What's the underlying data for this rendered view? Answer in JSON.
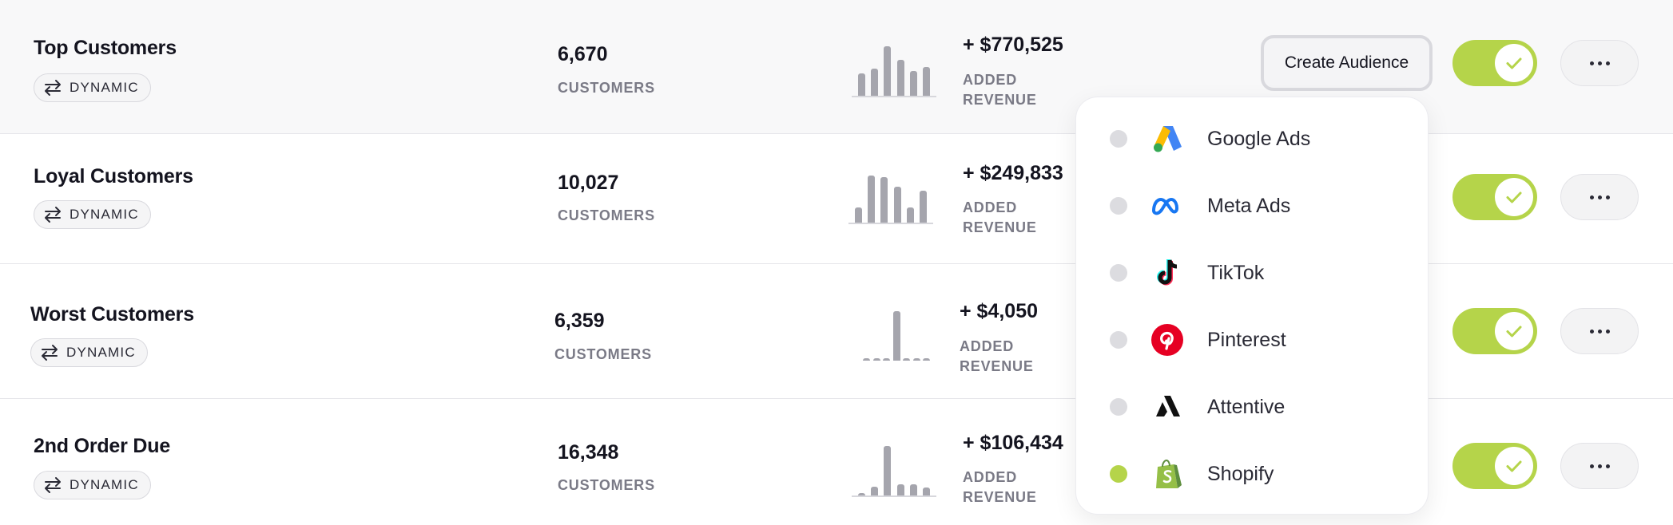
{
  "segments": [
    {
      "name": "Top Customers",
      "badge": "DYNAMIC",
      "count": "6,670",
      "count_label": "CUSTOMERS",
      "revenue": "+ $770,525",
      "revenue_label": "ADDED REVENUE",
      "spark": [
        0.45,
        0.55,
        1.0,
        0.72,
        0.5,
        0.58
      ],
      "enabled": true
    },
    {
      "name": "Loyal Customers",
      "badge": "DYNAMIC",
      "count": "10,027",
      "count_label": "CUSTOMERS",
      "revenue": "+ $249,833",
      "revenue_label": "ADDED REVENUE",
      "spark": [
        0.3,
        0.95,
        0.92,
        0.72,
        0.3,
        0.65
      ],
      "enabled": true
    },
    {
      "name": "Worst Customers",
      "badge": "DYNAMIC",
      "count": "6,359",
      "count_label": "CUSTOMERS",
      "revenue": "+ $4,050",
      "revenue_label": "ADDED REVENUE",
      "spark": [
        0.05,
        0.02,
        0.03,
        1.0,
        0.05,
        0.02,
        0.05
      ],
      "enabled": true
    },
    {
      "name": "2nd Order Due",
      "badge": "DYNAMIC",
      "count": "16,348",
      "count_label": "CUSTOMERS",
      "revenue": "+ $106,434",
      "revenue_label": "ADDED REVENUE",
      "spark": [
        0.03,
        0.18,
        1.0,
        0.22,
        0.22,
        0.16
      ],
      "enabled": true
    }
  ],
  "create_audience_label": "Create Audience",
  "destinations": [
    {
      "label": "Google Ads",
      "icon": "google-ads-icon",
      "selected": false
    },
    {
      "label": "Meta Ads",
      "icon": "meta-icon",
      "selected": false
    },
    {
      "label": "TikTok",
      "icon": "tiktok-icon",
      "selected": false
    },
    {
      "label": "Pinterest",
      "icon": "pinterest-icon",
      "selected": false
    },
    {
      "label": "Attentive",
      "icon": "attentive-icon",
      "selected": false
    },
    {
      "label": "Shopify",
      "icon": "shopify-icon",
      "selected": true
    }
  ],
  "colors": {
    "accent": "#b5d44a",
    "spark": "#a5a5ad",
    "muted_text": "#7a7a86"
  }
}
